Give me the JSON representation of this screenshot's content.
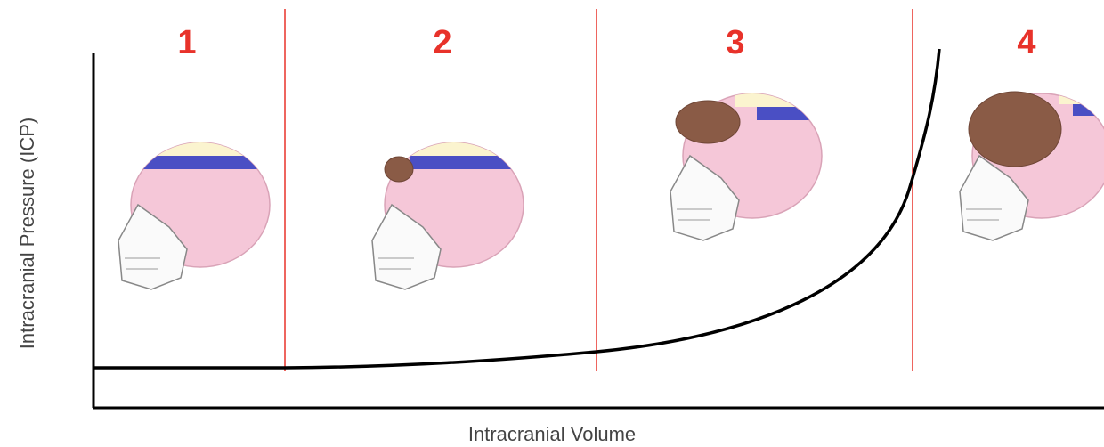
{
  "y_axis_label": "Intracranial Pressure (ICP)",
  "x_axis_label": "Intracranial Volume",
  "stages": [
    {
      "label": "1"
    },
    {
      "label": "2"
    },
    {
      "label": "3"
    },
    {
      "label": "4"
    }
  ]
}
